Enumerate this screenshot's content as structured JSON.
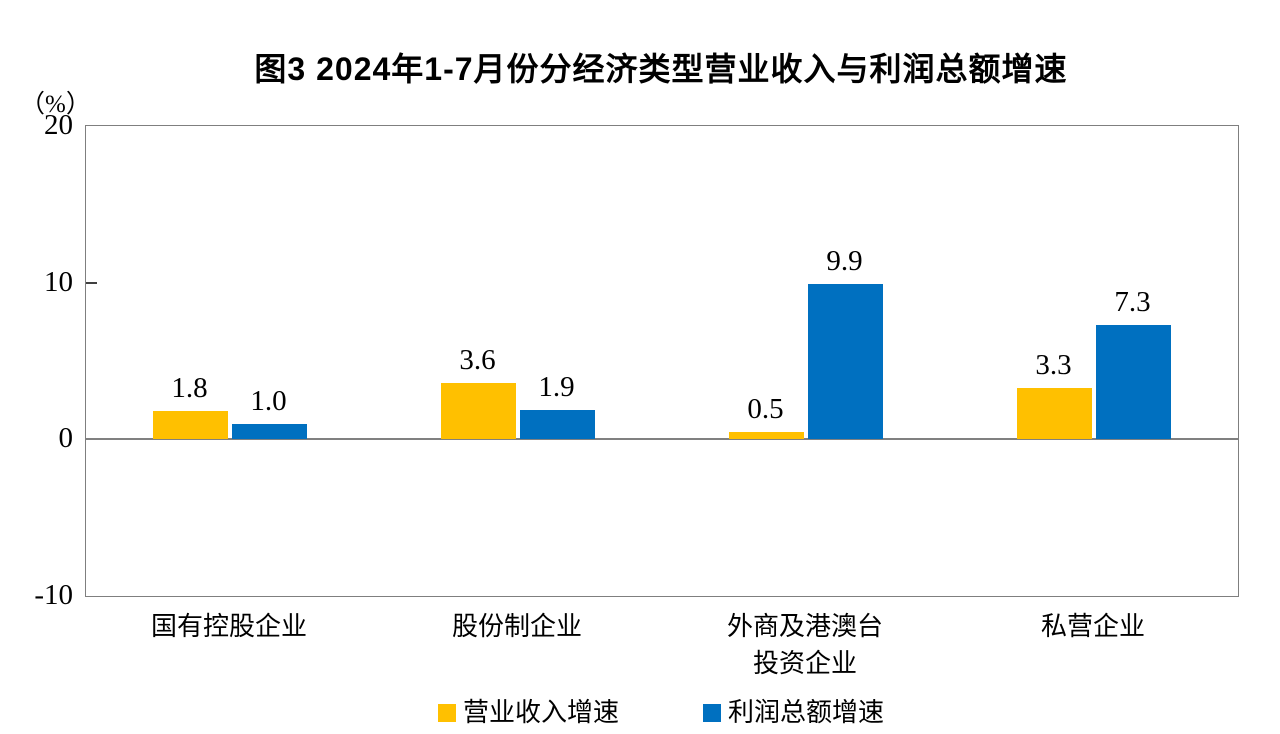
{
  "chart_data": {
    "type": "bar",
    "title": "图3  2024年1-7月份分经济类型营业收入与利润总额增速",
    "unit_label": "（%）",
    "categories": [
      "国有控股企业",
      "股份制企业",
      "外商及港澳台\n投资企业",
      "私营企业"
    ],
    "series": [
      {
        "name": "营业收入增速",
        "color": "#FFC000",
        "values": [
          1.8,
          3.6,
          0.5,
          3.3
        ]
      },
      {
        "name": "利润总额增速",
        "color": "#0070C0",
        "values": [
          1.0,
          1.9,
          9.9,
          7.3
        ]
      }
    ],
    "ylim": [
      -10,
      20
    ],
    "yticks": [
      20,
      10,
      0,
      -10
    ],
    "xlabel": "",
    "ylabel": "",
    "grid": false,
    "legend_position": "bottom",
    "colors": {
      "axis": "#7f7f7f",
      "zero_line": "#808080",
      "text": "#000000",
      "background": "#ffffff"
    }
  }
}
